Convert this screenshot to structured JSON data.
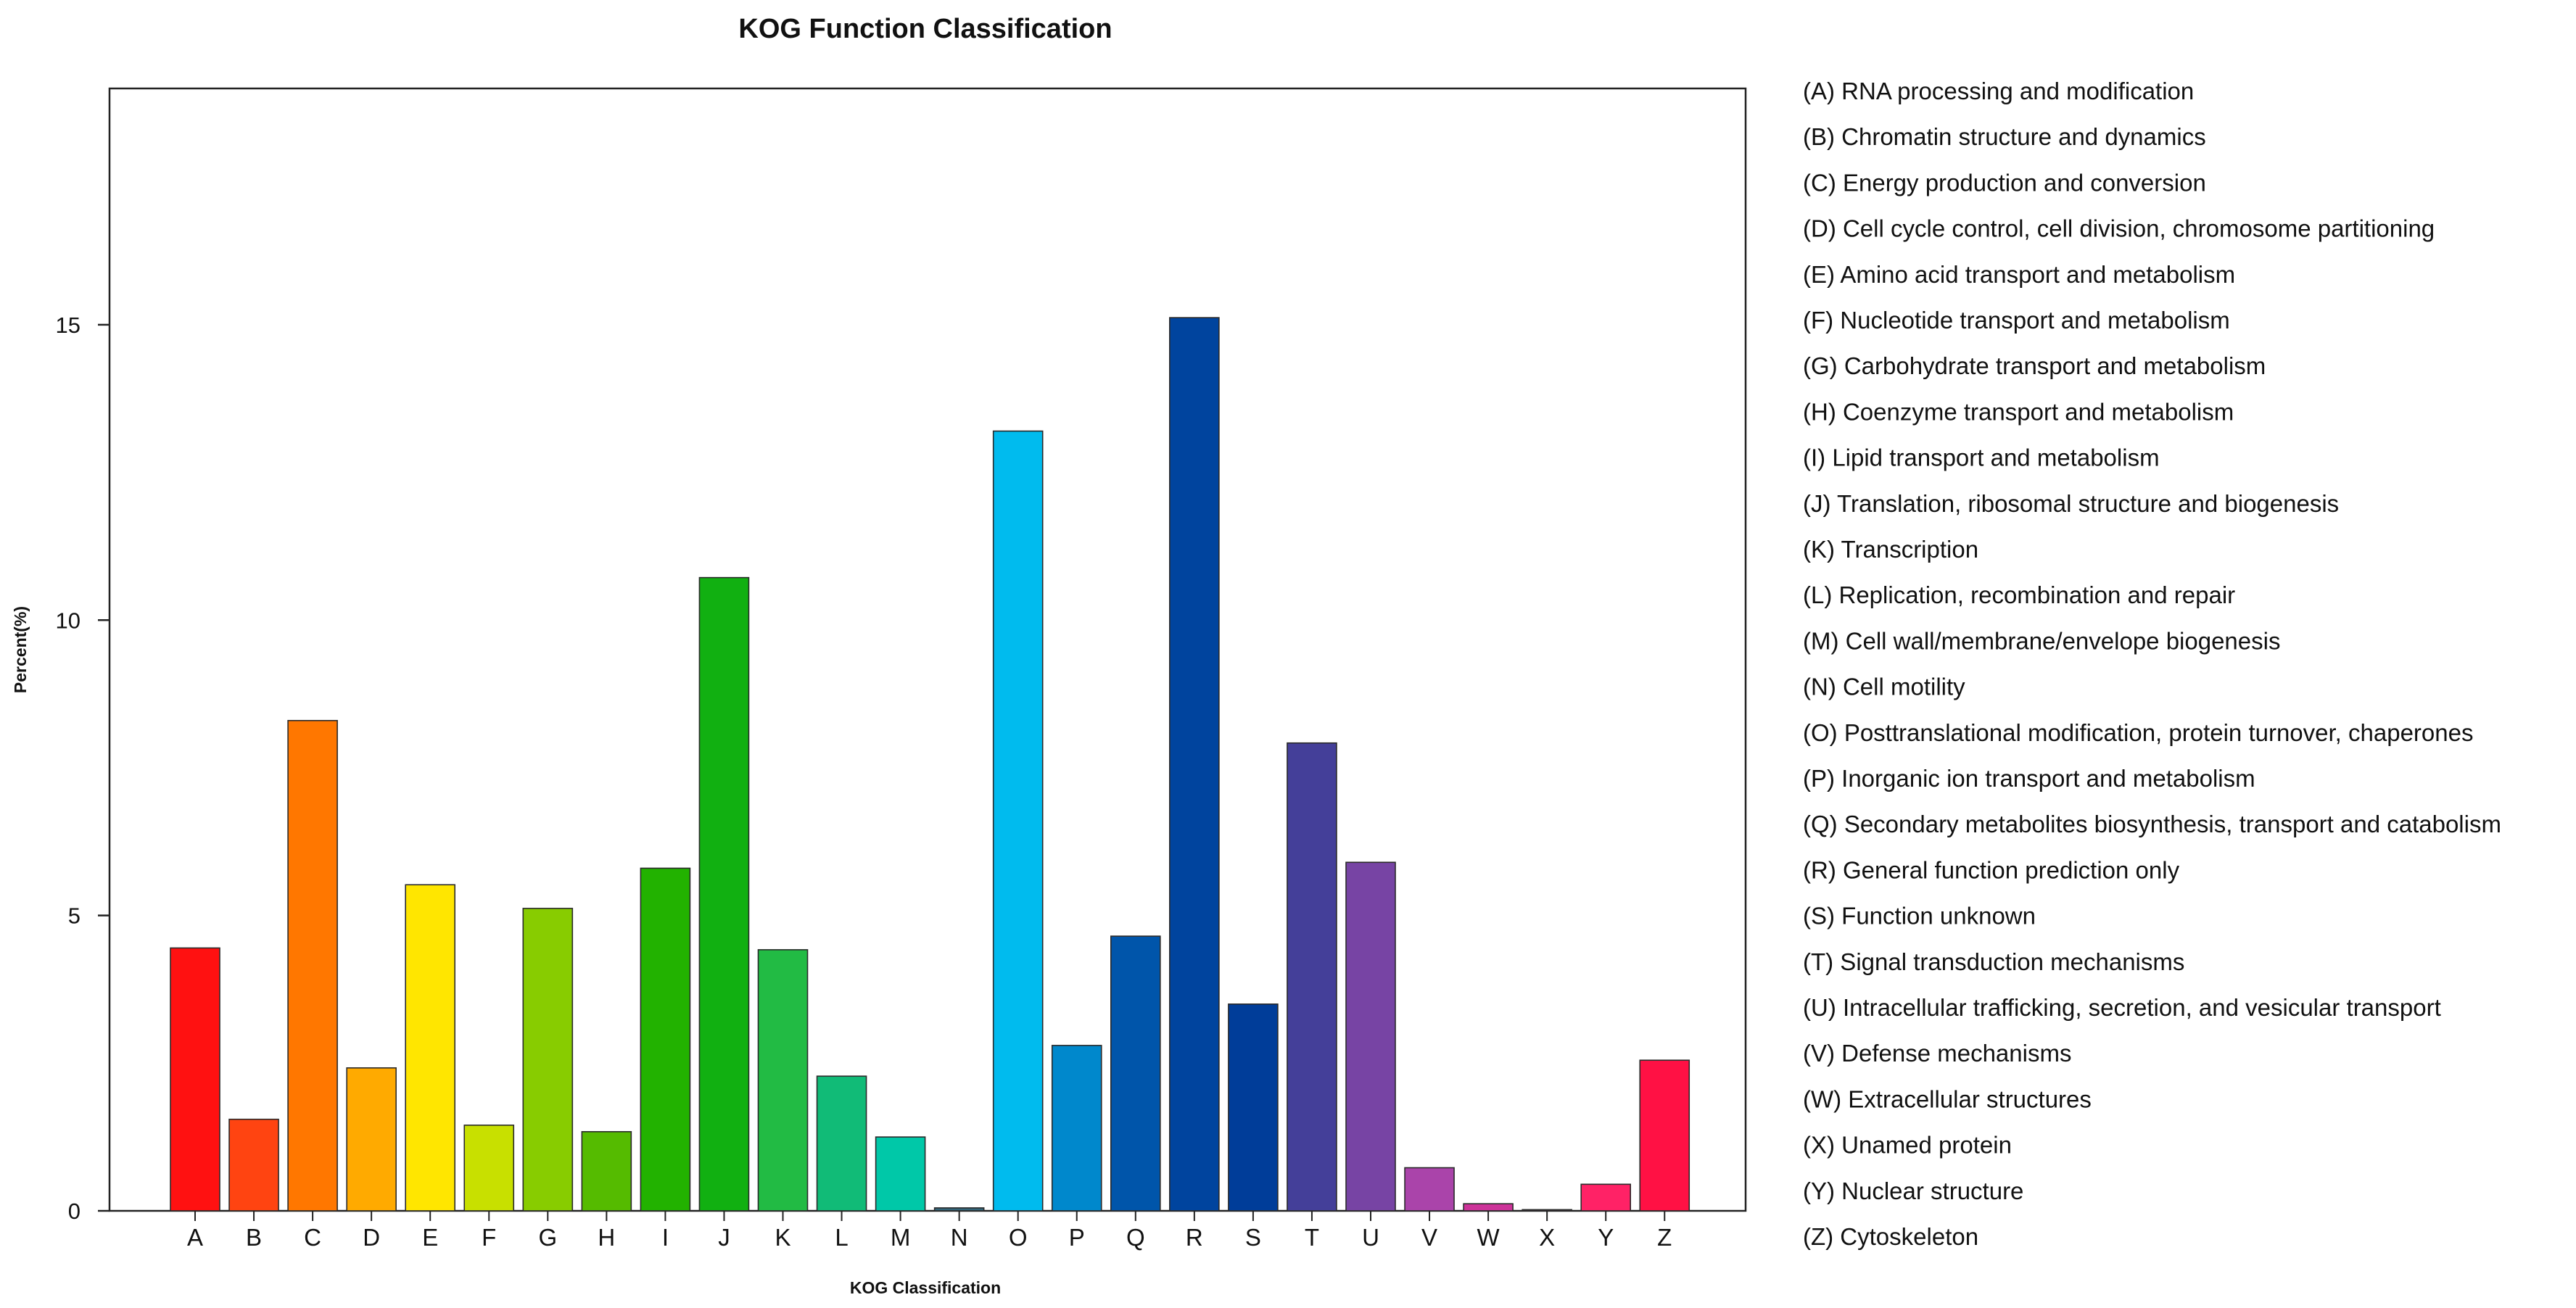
{
  "chart_data": {
    "type": "bar",
    "title": "KOG Function Classification",
    "xlabel": "KOG Classification",
    "ylabel": "Percent(%)",
    "ylim": [
      0,
      19
    ],
    "yticks": [
      0,
      5,
      10,
      15
    ],
    "grid": false,
    "legend_position": "right",
    "categories": [
      "A",
      "B",
      "C",
      "D",
      "E",
      "F",
      "G",
      "H",
      "I",
      "J",
      "K",
      "L",
      "M",
      "N",
      "O",
      "P",
      "Q",
      "R",
      "S",
      "T",
      "U",
      "V",
      "W",
      "X",
      "Y",
      "Z"
    ],
    "values": [
      4.45,
      1.55,
      8.3,
      2.42,
      5.52,
      1.45,
      5.12,
      1.34,
      5.8,
      10.72,
      4.42,
      2.28,
      1.25,
      0.05,
      13.2,
      2.8,
      4.65,
      15.12,
      3.5,
      7.92,
      5.9,
      0.73,
      0.12,
      0.02,
      0.45,
      2.55
    ],
    "colors": [
      "#ff1111",
      "#ff4411",
      "#ff7700",
      "#ffaa00",
      "#ffe600",
      "#c8e000",
      "#88cc00",
      "#55bb00",
      "#22b200",
      "#11b011",
      "#22bb44",
      "#11bb77",
      "#00c8a8",
      "#33667a",
      "#00bbee",
      "#0088cc",
      "#0055aa",
      "#00449e",
      "#003d99",
      "#443f99",
      "#7744a4",
      "#aa44aa",
      "#cc3399",
      "#dd2288",
      "#ff2266",
      "#ff1144"
    ],
    "legend": [
      "(A) RNA processing and modification",
      "(B) Chromatin structure and dynamics",
      "(C) Energy production and conversion",
      "(D) Cell cycle control, cell division, chromosome partitioning",
      "(E) Amino acid transport and metabolism",
      "(F) Nucleotide transport and metabolism",
      "(G) Carbohydrate transport and metabolism",
      "(H) Coenzyme transport and metabolism",
      "(I) Lipid transport and metabolism",
      "(J) Translation, ribosomal structure and biogenesis",
      "(K) Transcription",
      "(L) Replication, recombination and repair",
      "(M) Cell wall/membrane/envelope biogenesis",
      "(N) Cell motility",
      "(O) Posttranslational modification, protein turnover, chaperones",
      "(P) Inorganic ion transport and metabolism",
      "(Q) Secondary metabolites biosynthesis, transport and catabolism",
      "(R) General function prediction only",
      "(S) Function unknown",
      "(T) Signal transduction mechanisms",
      "(U) Intracellular trafficking, secretion, and vesicular transport",
      "(V) Defense mechanisms",
      "(W) Extracellular structures",
      "(X) Unamed protein",
      "(Y) Nuclear structure",
      "(Z) Cytoskeleton"
    ]
  }
}
